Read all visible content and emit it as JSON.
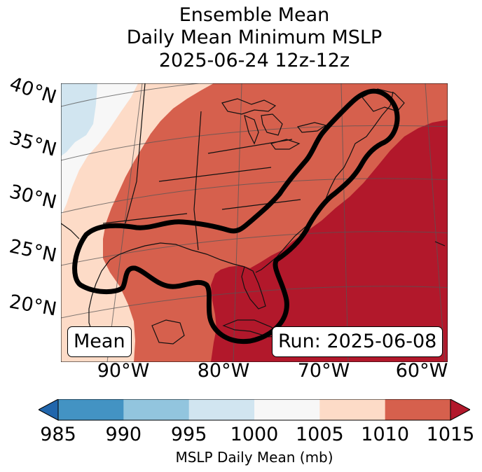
{
  "title": {
    "line1": "Ensemble Mean",
    "line2": "Daily Mean Minimum MSLP",
    "line3": "2025-06-24 12z-12z"
  },
  "map": {
    "lat_labels": [
      "40°N",
      "35°N",
      "30°N",
      "25°N",
      "20°N"
    ],
    "lon_labels": [
      "90°W",
      "80°W",
      "70°W",
      "60°W"
    ],
    "mean_box": "Mean",
    "run_box": "Run: 2025-06-08",
    "region": "Eastern United States, Gulf of Mexico, Western Atlantic",
    "colors": {
      "ocean_high": "#b2182b",
      "land_mid": "#d6604d",
      "light": "#fddbc7",
      "neutral": "#f7f7f7",
      "cool": "#d1e5f0",
      "contour": "#000000"
    }
  },
  "colorbar": {
    "label": "MSLP Daily Mean (mb)",
    "ticks": [
      "985",
      "990",
      "995",
      "1000",
      "1005",
      "1010",
      "1015"
    ],
    "bins": [
      {
        "range": "<985",
        "color": "#2166ac"
      },
      {
        "range": "985-990",
        "color": "#4393c3"
      },
      {
        "range": "990-995",
        "color": "#92c5de"
      },
      {
        "range": "995-1000",
        "color": "#d1e5f0"
      },
      {
        "range": "1000-1005",
        "color": "#f7f7f7"
      },
      {
        "range": "1005-1010",
        "color": "#fddbc7"
      },
      {
        "range": "1010-1015",
        "color": "#d6604d"
      },
      {
        "range": ">1015",
        "color": "#b2182b"
      }
    ]
  }
}
